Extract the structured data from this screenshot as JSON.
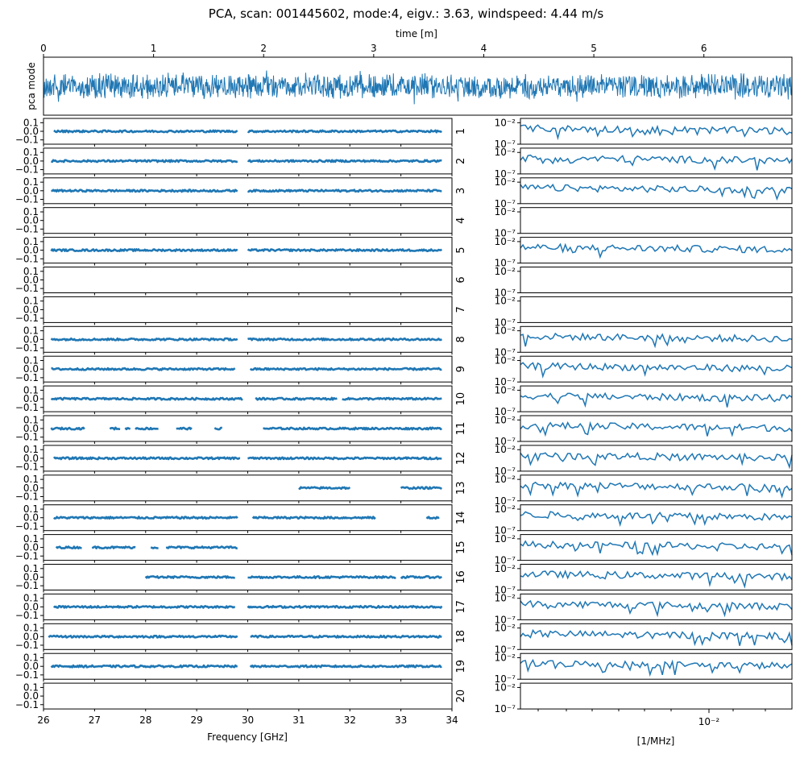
{
  "chart_data": {
    "title": "PCA, scan: 001445602, mode:4, eigv.: 3.63, windspeed: 4.44 m/s",
    "color": "#1f77b4",
    "top_panel": {
      "type": "line",
      "xlabel": "time [m]",
      "ylabel": "pca mode",
      "xlim": [
        0,
        6.8
      ],
      "xticks": [
        "0",
        "1",
        "2",
        "3",
        "4",
        "5",
        "6"
      ],
      "xtick_values": [
        0,
        1,
        2,
        3,
        4,
        5,
        6
      ],
      "description": "noise-like PCA mode time series"
    },
    "left_panels": {
      "type": "scatter",
      "xlabel": "Frequency [GHz]",
      "xlim": [
        26,
        34
      ],
      "xticks": [
        "26",
        "27",
        "28",
        "29",
        "30",
        "31",
        "32",
        "33",
        "34"
      ],
      "xtick_values": [
        26,
        27,
        28,
        29,
        30,
        31,
        32,
        33,
        34
      ],
      "ylim": [
        -0.15,
        0.15
      ],
      "yticks": [
        "0.1",
        "0.0",
        "−0.1"
      ],
      "ytick_values": [
        0.1,
        0.0,
        -0.1
      ]
    },
    "right_panels": {
      "type": "line",
      "xlabel": "[1/MHz]",
      "xscale": "log",
      "xtick_label": "10⁻²",
      "ylim_log10": [
        -7,
        -1
      ],
      "yticks": [
        "10⁻²",
        "10⁻⁷"
      ]
    },
    "feeds": [
      {
        "label": "1",
        "segments": [
          [
            26.2,
            29.8
          ],
          [
            30.0,
            33.8
          ]
        ]
      },
      {
        "label": "2",
        "segments": [
          [
            26.15,
            29.8
          ],
          [
            30.0,
            33.8
          ]
        ]
      },
      {
        "label": "3",
        "segments": [
          [
            26.15,
            29.8
          ],
          [
            30.0,
            33.8
          ]
        ]
      },
      {
        "label": "4",
        "segments": []
      },
      {
        "label": "5",
        "segments": [
          [
            26.15,
            29.8
          ],
          [
            30.0,
            33.8
          ]
        ]
      },
      {
        "label": "6",
        "segments": []
      },
      {
        "label": "7",
        "segments": []
      },
      {
        "label": "8",
        "segments": [
          [
            26.15,
            29.8
          ],
          [
            30.0,
            33.8
          ]
        ]
      },
      {
        "label": "9",
        "segments": [
          [
            26.15,
            29.75
          ],
          [
            30.05,
            33.8
          ]
        ]
      },
      {
        "label": "10",
        "segments": [
          [
            26.15,
            29.9
          ],
          [
            30.15,
            31.75
          ],
          [
            31.85,
            33.8
          ]
        ]
      },
      {
        "label": "11",
        "segments": [
          [
            26.15,
            26.8
          ],
          [
            27.3,
            27.5
          ],
          [
            27.6,
            27.7
          ],
          [
            27.8,
            28.25
          ],
          [
            28.6,
            28.9
          ],
          [
            29.35,
            29.5
          ],
          [
            30.3,
            33.8
          ]
        ]
      },
      {
        "label": "12",
        "segments": [
          [
            26.2,
            29.85
          ],
          [
            30.0,
            33.8
          ]
        ]
      },
      {
        "label": "13",
        "segments": [
          [
            31.0,
            32.0
          ],
          [
            33.0,
            33.8
          ]
        ]
      },
      {
        "label": "14",
        "segments": [
          [
            26.2,
            29.8
          ],
          [
            30.1,
            32.5
          ],
          [
            33.5,
            33.75
          ]
        ]
      },
      {
        "label": "15",
        "segments": [
          [
            26.25,
            26.75
          ],
          [
            26.95,
            27.8
          ],
          [
            28.1,
            28.25
          ],
          [
            28.4,
            29.8
          ]
        ]
      },
      {
        "label": "16",
        "segments": [
          [
            28.0,
            29.75
          ],
          [
            30.0,
            32.9
          ],
          [
            33.0,
            33.8
          ]
        ]
      },
      {
        "label": "17",
        "segments": [
          [
            26.2,
            29.75
          ],
          [
            30.0,
            33.8
          ]
        ]
      },
      {
        "label": "18",
        "segments": [
          [
            26.1,
            29.8
          ],
          [
            30.05,
            33.8
          ]
        ]
      },
      {
        "label": "19",
        "segments": [
          [
            26.15,
            29.8
          ],
          [
            30.05,
            33.8
          ]
        ]
      },
      {
        "label": "20",
        "segments": []
      }
    ]
  }
}
